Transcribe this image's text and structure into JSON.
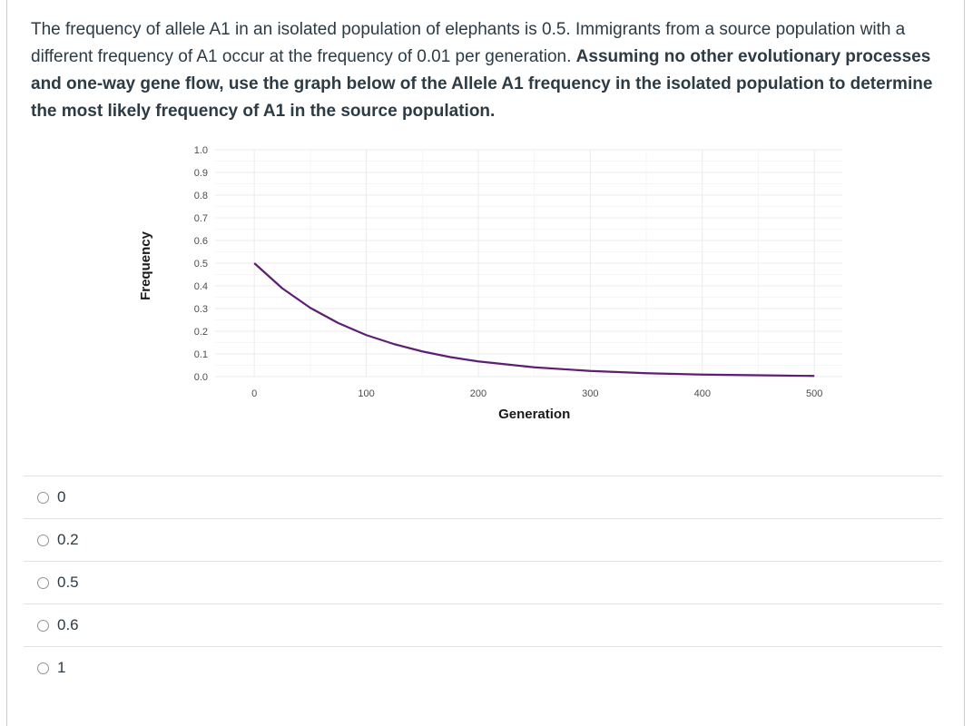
{
  "question": {
    "text_plain": "The frequency of allele A1 in an isolated population of elephants is 0.5. Immigrants from a source population with a different frequency of A1 occur at the frequency of 0.01 per generation.",
    "text_bold": "Assuming no other evolutionary processes and one-way gene flow, use the graph below of the Allele A1 frequency in the isolated population to determine the most likely frequency of A1 in the source population."
  },
  "chart_data": {
    "type": "line",
    "xlabel": "Generation",
    "ylabel": "Frequency",
    "xlim": [
      0,
      500
    ],
    "ylim": [
      0,
      1
    ],
    "x_ticks": [
      0,
      100,
      200,
      300,
      400,
      500
    ],
    "y_ticks": [
      "0.0",
      "0.1",
      "0.2",
      "0.3",
      "0.4",
      "0.5",
      "0.6",
      "0.7",
      "0.8",
      "0.9",
      "1.0"
    ],
    "grid": true,
    "series": [
      {
        "color": "#5e1f73",
        "x": [
          0,
          25,
          50,
          75,
          100,
          125,
          150,
          175,
          200,
          250,
          300,
          350,
          400,
          450,
          500
        ],
        "values": [
          0.5,
          0.389,
          0.303,
          0.236,
          0.183,
          0.143,
          0.111,
          0.086,
          0.067,
          0.041,
          0.025,
          0.015,
          0.009,
          0.006,
          0.003
        ]
      }
    ]
  },
  "answers": [
    {
      "label": "0"
    },
    {
      "label": "0.2"
    },
    {
      "label": "0.5"
    },
    {
      "label": "0.6"
    },
    {
      "label": "1"
    }
  ]
}
